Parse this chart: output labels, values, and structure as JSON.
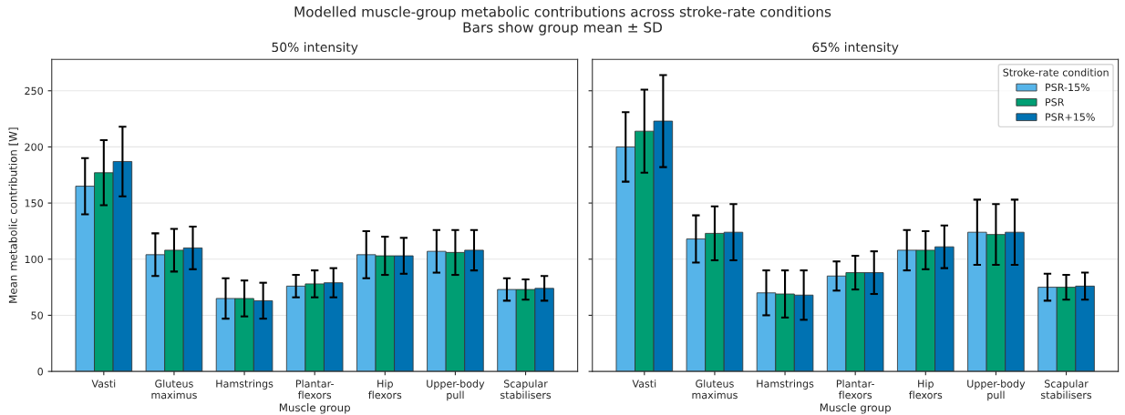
{
  "chart_data": [
    {
      "type": "bar",
      "title": "Modelled muscle-group metabolic contributions across stroke-rate conditions",
      "subtitle": "Bars show group mean ± SD",
      "annotations": [
        "50% intensity"
      ],
      "xlabel": "Muscle group",
      "ylabel": "Mean metabolic contribution [W]",
      "categories": [
        "Vasti",
        "Gluteus\nmaximus",
        "Hamstrings",
        "Plantar-\nflexors",
        "Hip\nflexors",
        "Upper-body\npull",
        "Scapular\nstabilisers"
      ],
      "series": [
        {
          "color": "#56b4e9",
          "values": [
            165,
            104,
            65,
            76,
            104,
            107,
            73
          ],
          "errors": [
            25,
            19,
            18,
            10,
            21,
            19,
            10
          ]
        },
        {
          "color": "#009e73",
          "values": [
            177,
            108,
            65,
            78,
            103,
            106,
            73
          ],
          "errors": [
            29,
            19,
            16,
            12,
            17,
            20,
            9
          ]
        },
        {
          "color": "#0072b2",
          "values": [
            187,
            110,
            63,
            79,
            103,
            108,
            74
          ],
          "errors": [
            31,
            19,
            16,
            13,
            16,
            18,
            11
          ]
        }
      ],
      "ylim": [
        0,
        278
      ],
      "yticks": [
        0,
        50,
        100,
        150,
        200,
        250
      ],
      "grid": "y"
    },
    {
      "type": "bar",
      "annotations": [
        "65% intensity"
      ],
      "xlabel": "Muscle group",
      "legend_title": "Stroke-rate condition",
      "categories": [
        "Vasti",
        "Gluteus\nmaximus",
        "Hamstrings",
        "Plantar-\nflexors",
        "Hip\nflexors",
        "Upper-body\npull",
        "Scapular\nstabilisers"
      ],
      "series": [
        {
          "name": "PSR-15%",
          "color": "#56b4e9",
          "values": [
            200,
            118,
            70,
            85,
            108,
            124,
            75
          ],
          "errors": [
            31,
            21,
            20,
            13,
            18,
            29,
            12
          ]
        },
        {
          "name": "PSR",
          "color": "#009e73",
          "values": [
            214,
            123,
            69,
            88,
            108,
            122,
            75
          ],
          "errors": [
            37,
            24,
            21,
            15,
            17,
            27,
            11
          ]
        },
        {
          "name": "PSR+15%",
          "color": "#0072b2",
          "values": [
            223,
            124,
            68,
            88,
            111,
            124,
            76
          ],
          "errors": [
            41,
            25,
            22,
            19,
            19,
            29,
            12
          ]
        }
      ],
      "ylim": [
        0,
        278
      ],
      "yticks": [
        0,
        50,
        100,
        150,
        200,
        250
      ],
      "tick_labels": "x",
      "grid": "y",
      "legend": "top right"
    }
  ]
}
